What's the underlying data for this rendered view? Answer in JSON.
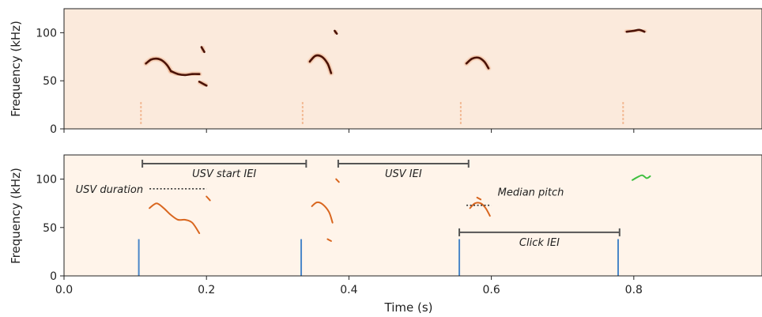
{
  "chart_data": [
    {
      "type": "heatmap",
      "panel": "spectrogram",
      "xlim": [
        0,
        0.98
      ],
      "ylim": [
        0,
        125
      ],
      "ylabel": "Frequency (kHz)",
      "yticks": [
        0,
        50,
        100
      ],
      "background_color": "#fbeadc",
      "ink_color": "#4a1206",
      "traces": [
        {
          "x": [
            0.115,
            0.122,
            0.13,
            0.138,
            0.145,
            0.15
          ],
          "y": [
            68,
            72,
            73,
            71,
            66,
            60
          ]
        },
        {
          "x": [
            0.15,
            0.16,
            0.17,
            0.18,
            0.19
          ],
          "y": [
            60,
            57,
            56,
            57,
            57
          ]
        },
        {
          "x": [
            0.19,
            0.2
          ],
          "y": [
            49,
            45
          ]
        },
        {
          "x": [
            0.193,
            0.197
          ],
          "y": [
            85,
            80
          ]
        },
        {
          "x": [
            0.345,
            0.353,
            0.362,
            0.37,
            0.375
          ],
          "y": [
            70,
            76,
            75,
            68,
            58
          ]
        },
        {
          "x": [
            0.38,
            0.383
          ],
          "y": [
            102,
            99
          ]
        },
        {
          "x": [
            0.565,
            0.573,
            0.582,
            0.59,
            0.596
          ],
          "y": [
            68,
            73,
            74,
            70,
            63
          ]
        },
        {
          "x": [
            0.79,
            0.8,
            0.808,
            0.815
          ],
          "y": [
            101,
            102,
            103,
            101
          ]
        }
      ],
      "clicks": [
        0.108,
        0.335,
        0.557,
        0.785
      ]
    },
    {
      "type": "line",
      "panel": "annotated",
      "xlim": [
        0,
        0.98
      ],
      "ylim": [
        0,
        125
      ],
      "xlabel": "Time (s)",
      "ylabel": "Frequency (kHz)",
      "xticks": [
        0.0,
        0.2,
        0.4,
        0.6,
        0.8
      ],
      "xtick_labels": [
        "0.0",
        "0.2",
        "0.4",
        "0.6",
        "0.8"
      ],
      "yticks": [
        0,
        50,
        100
      ],
      "background_color": "#fff4ea",
      "series": [
        {
          "color": "#d9661f",
          "x": [
            0.12,
            0.13,
            0.14,
            0.15,
            0.16,
            0.17,
            0.18,
            0.19
          ],
          "y": [
            70,
            75,
            70,
            63,
            58,
            58,
            55,
            44
          ]
        },
        {
          "color": "#d9661f",
          "x": [
            0.2,
            0.205
          ],
          "y": [
            82,
            78
          ]
        },
        {
          "color": "#d9661f",
          "x": [
            0.348,
            0.355,
            0.363,
            0.372,
            0.377
          ],
          "y": [
            72,
            76,
            74,
            66,
            55
          ]
        },
        {
          "color": "#d9661f",
          "x": [
            0.37,
            0.375
          ],
          "y": [
            38,
            36
          ]
        },
        {
          "color": "#d9661f",
          "x": [
            0.382,
            0.386
          ],
          "y": [
            100,
            97
          ]
        },
        {
          "color": "#d9661f",
          "x": [
            0.57,
            0.577,
            0.585,
            0.592,
            0.598
          ],
          "y": [
            70,
            75,
            75,
            70,
            62
          ]
        },
        {
          "color": "#d9661f",
          "x": [
            0.58,
            0.585
          ],
          "y": [
            81,
            79
          ]
        },
        {
          "color": "#3fbf3f",
          "x": [
            0.798,
            0.805,
            0.812,
            0.818,
            0.823
          ],
          "y": [
            99,
            102,
            104,
            101,
            103
          ]
        }
      ],
      "clicks": [
        0.105,
        0.333,
        0.555,
        0.778
      ],
      "click_top": 38,
      "click_color": "#4a86c8",
      "annotations": [
        {
          "kind": "bracket",
          "label": "USV start IEI",
          "x1": 0.11,
          "x2": 0.34,
          "y": 116
        },
        {
          "kind": "bracket",
          "label": "USV IEI",
          "x1": 0.385,
          "x2": 0.568,
          "y": 116
        },
        {
          "kind": "bracket",
          "label": "Click IEI",
          "x1": 0.555,
          "x2": 0.78,
          "y": 45
        },
        {
          "kind": "dotted",
          "label": "USV duration",
          "x1": 0.12,
          "x2": 0.2,
          "y": 90
        },
        {
          "kind": "dotted",
          "label": "Median pitch",
          "x1": 0.565,
          "x2": 0.6,
          "y": 73
        }
      ]
    }
  ]
}
